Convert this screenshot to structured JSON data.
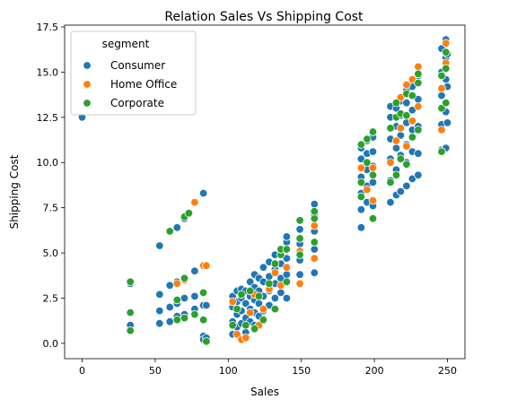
{
  "chart_data": {
    "type": "scatter",
    "title": "Relation Sales Vs Shipping Cost",
    "xlabel": "Sales",
    "ylabel": "Shipping Cost",
    "xlim": [
      -12,
      262
    ],
    "ylim": [
      -0.85,
      17.6
    ],
    "xticks": [
      0,
      50,
      100,
      150,
      200,
      250
    ],
    "yticks": [
      0.0,
      2.5,
      5.0,
      7.5,
      10.0,
      12.5,
      15.0,
      17.5
    ],
    "xtick_labels": [
      "0",
      "50",
      "100",
      "150",
      "200",
      "250"
    ],
    "ytick_labels": [
      "0.0",
      "2.5",
      "5.0",
      "7.5",
      "10.0",
      "12.5",
      "15.0",
      "17.5"
    ],
    "grid": false,
    "legend": {
      "title": "segment",
      "placement": "top-left"
    },
    "series": [
      {
        "name": "Consumer",
        "color": "#1f77b4",
        "points": [
          [
            0,
            12.5
          ],
          [
            33,
            1.0
          ],
          [
            33,
            0.7
          ],
          [
            33,
            3.3
          ],
          [
            53,
            5.4
          ],
          [
            53,
            2.7
          ],
          [
            53,
            1.8
          ],
          [
            53,
            1.1
          ],
          [
            60,
            3.2
          ],
          [
            60,
            2.0
          ],
          [
            60,
            1.2
          ],
          [
            65,
            2.2
          ],
          [
            65,
            1.5
          ],
          [
            65,
            3.4
          ],
          [
            65,
            6.4
          ],
          [
            70,
            2.5
          ],
          [
            70,
            1.6
          ],
          [
            70,
            3.5
          ],
          [
            70,
            6.9
          ],
          [
            77,
            2.6
          ],
          [
            77,
            1.9
          ],
          [
            77,
            4.0
          ],
          [
            83,
            8.3
          ],
          [
            83,
            2.1
          ],
          [
            83,
            0.4
          ],
          [
            83,
            0.2
          ],
          [
            83,
            2.8
          ],
          [
            85,
            2.1
          ],
          [
            85,
            0.3
          ],
          [
            103,
            2.0
          ],
          [
            103,
            1.2
          ],
          [
            103,
            0.5
          ],
          [
            103,
            2.6
          ],
          [
            106,
            0.9
          ],
          [
            106,
            1.6
          ],
          [
            106,
            2.3
          ],
          [
            106,
            2.9
          ],
          [
            109,
            1.1
          ],
          [
            109,
            1.8
          ],
          [
            109,
            2.5
          ],
          [
            109,
            3.0
          ],
          [
            112,
            0.6
          ],
          [
            112,
            1.4
          ],
          [
            112,
            2.2
          ],
          [
            112,
            2.9
          ],
          [
            115,
            1.2
          ],
          [
            115,
            1.9
          ],
          [
            115,
            2.6
          ],
          [
            115,
            3.4
          ],
          [
            118,
            1.0
          ],
          [
            118,
            1.7
          ],
          [
            118,
            2.4
          ],
          [
            118,
            3.1
          ],
          [
            118,
            3.8
          ],
          [
            121,
            1.5
          ],
          [
            121,
            2.2
          ],
          [
            121,
            2.9
          ],
          [
            121,
            3.6
          ],
          [
            124,
            1.8
          ],
          [
            124,
            2.6
          ],
          [
            124,
            3.4
          ],
          [
            124,
            4.2
          ],
          [
            128,
            2.1
          ],
          [
            128,
            2.9
          ],
          [
            128,
            3.7
          ],
          [
            128,
            4.5
          ],
          [
            132,
            2.5
          ],
          [
            132,
            3.3
          ],
          [
            132,
            4.1
          ],
          [
            132,
            4.9
          ],
          [
            136,
            2.8
          ],
          [
            136,
            3.6
          ],
          [
            136,
            4.4
          ],
          [
            136,
            5.2
          ],
          [
            140,
            2.5
          ],
          [
            140,
            3.8
          ],
          [
            140,
            4.7
          ],
          [
            140,
            5.6
          ],
          [
            140,
            5.9
          ],
          [
            149,
            3.8
          ],
          [
            149,
            4.6
          ],
          [
            149,
            5.5
          ],
          [
            149,
            6.3
          ],
          [
            159,
            3.9
          ],
          [
            159,
            5.2
          ],
          [
            159,
            6.2
          ],
          [
            159,
            7.1
          ],
          [
            159,
            7.7
          ],
          [
            191,
            6.4
          ],
          [
            191,
            7.4
          ],
          [
            191,
            8.3
          ],
          [
            191,
            9.2
          ],
          [
            191,
            10.2
          ],
          [
            191,
            10.8
          ],
          [
            195,
            7.8
          ],
          [
            195,
            8.7
          ],
          [
            195,
            9.6
          ],
          [
            195,
            10.5
          ],
          [
            195,
            11.2
          ],
          [
            199,
            7.6
          ],
          [
            199,
            8.9
          ],
          [
            199,
            9.8
          ],
          [
            199,
            10.6
          ],
          [
            199,
            11.4
          ],
          [
            211,
            7.8
          ],
          [
            211,
            9.0
          ],
          [
            211,
            10.2
          ],
          [
            211,
            11.3
          ],
          [
            211,
            12.5
          ],
          [
            211,
            13.1
          ],
          [
            215,
            8.2
          ],
          [
            215,
            9.6
          ],
          [
            215,
            10.8
          ],
          [
            215,
            12.0
          ],
          [
            215,
            13.0
          ],
          [
            218,
            8.4
          ],
          [
            218,
            10.4
          ],
          [
            218,
            11.5
          ],
          [
            218,
            12.6
          ],
          [
            218,
            13.4
          ],
          [
            222,
            8.7
          ],
          [
            222,
            10.0
          ],
          [
            222,
            11.0
          ],
          [
            222,
            12.2
          ],
          [
            222,
            13.3
          ],
          [
            222,
            14.0
          ],
          [
            226,
            9.1
          ],
          [
            226,
            10.6
          ],
          [
            226,
            11.8
          ],
          [
            226,
            12.9
          ],
          [
            226,
            14.2
          ],
          [
            230,
            9.3
          ],
          [
            230,
            10.5
          ],
          [
            230,
            12.0
          ],
          [
            230,
            13.5
          ],
          [
            230,
            14.8
          ],
          [
            246,
            10.7
          ],
          [
            246,
            12.1
          ],
          [
            246,
            13.7
          ],
          [
            246,
            15.0
          ],
          [
            246,
            16.3
          ],
          [
            249,
            10.8
          ],
          [
            249,
            12.8
          ],
          [
            249,
            14.6
          ],
          [
            249,
            15.8
          ],
          [
            249,
            16.8
          ],
          [
            250,
            12.2
          ],
          [
            250,
            14.2
          ],
          [
            250,
            16.0
          ]
        ]
      },
      {
        "name": "Home Office",
        "color": "#ff7f0e",
        "points": [
          [
            65,
            3.3
          ],
          [
            70,
            3.5
          ],
          [
            77,
            7.8
          ],
          [
            83,
            4.3
          ],
          [
            85,
            4.3
          ],
          [
            103,
            2.3
          ],
          [
            106,
            0.5
          ],
          [
            109,
            0.2
          ],
          [
            112,
            0.3
          ],
          [
            115,
            1.7
          ],
          [
            118,
            2.7
          ],
          [
            121,
            1.0
          ],
          [
            124,
            1.9
          ],
          [
            128,
            3.0
          ],
          [
            132,
            3.9
          ],
          [
            136,
            3.2
          ],
          [
            140,
            4.2
          ],
          [
            149,
            3.3
          ],
          [
            149,
            5.1
          ],
          [
            159,
            4.7
          ],
          [
            159,
            6.5
          ],
          [
            191,
            9.7
          ],
          [
            195,
            8.5
          ],
          [
            199,
            7.9
          ],
          [
            199,
            9.7
          ],
          [
            211,
            10.0
          ],
          [
            215,
            11.2
          ],
          [
            218,
            11.9
          ],
          [
            218,
            13.6
          ],
          [
            222,
            10.9
          ],
          [
            222,
            14.3
          ],
          [
            226,
            12.3
          ],
          [
            226,
            14.6
          ],
          [
            230,
            13.1
          ],
          [
            230,
            15.3
          ],
          [
            246,
            11.8
          ],
          [
            246,
            14.1
          ],
          [
            249,
            15.5
          ],
          [
            249,
            16.6
          ]
        ]
      },
      {
        "name": "Corporate",
        "color": "#2ca02c",
        "points": [
          [
            33,
            3.4
          ],
          [
            33,
            1.7
          ],
          [
            33,
            0.7
          ],
          [
            60,
            6.2
          ],
          [
            65,
            1.3
          ],
          [
            65,
            2.4
          ],
          [
            70,
            7.0
          ],
          [
            70,
            1.4
          ],
          [
            70,
            3.6
          ],
          [
            73,
            7.2
          ],
          [
            77,
            1.6
          ],
          [
            83,
            1.3
          ],
          [
            83,
            2.8
          ],
          [
            85,
            0.1
          ],
          [
            103,
            1.0
          ],
          [
            106,
            1.9
          ],
          [
            109,
            2.7
          ],
          [
            112,
            1.0
          ],
          [
            115,
            2.9
          ],
          [
            118,
            0.8
          ],
          [
            121,
            2.6
          ],
          [
            124,
            1.3
          ],
          [
            128,
            3.3
          ],
          [
            132,
            1.9
          ],
          [
            132,
            4.4
          ],
          [
            136,
            4.9
          ],
          [
            136,
            5.2
          ],
          [
            140,
            3.4
          ],
          [
            140,
            5.2
          ],
          [
            149,
            4.9
          ],
          [
            149,
            5.8
          ],
          [
            149,
            6.8
          ],
          [
            159,
            5.6
          ],
          [
            159,
            6.9
          ],
          [
            159,
            7.3
          ],
          [
            191,
            8.1
          ],
          [
            191,
            8.9
          ],
          [
            191,
            11.0
          ],
          [
            195,
            10.0
          ],
          [
            195,
            11.3
          ],
          [
            199,
            6.9
          ],
          [
            199,
            9.3
          ],
          [
            199,
            11.7
          ],
          [
            211,
            8.9
          ],
          [
            211,
            11.9
          ],
          [
            215,
            9.3
          ],
          [
            215,
            12.5
          ],
          [
            215,
            13.3
          ],
          [
            218,
            10.2
          ],
          [
            218,
            12.7
          ],
          [
            222,
            9.9
          ],
          [
            222,
            12.6
          ],
          [
            222,
            13.8
          ],
          [
            226,
            11.4
          ],
          [
            226,
            13.7
          ],
          [
            230,
            11.8
          ],
          [
            230,
            14.4
          ],
          [
            230,
            14.9
          ],
          [
            246,
            10.6
          ],
          [
            246,
            13.0
          ],
          [
            246,
            14.8
          ],
          [
            249,
            13.3
          ],
          [
            249,
            15.2
          ],
          [
            249,
            16.1
          ]
        ]
      }
    ]
  }
}
